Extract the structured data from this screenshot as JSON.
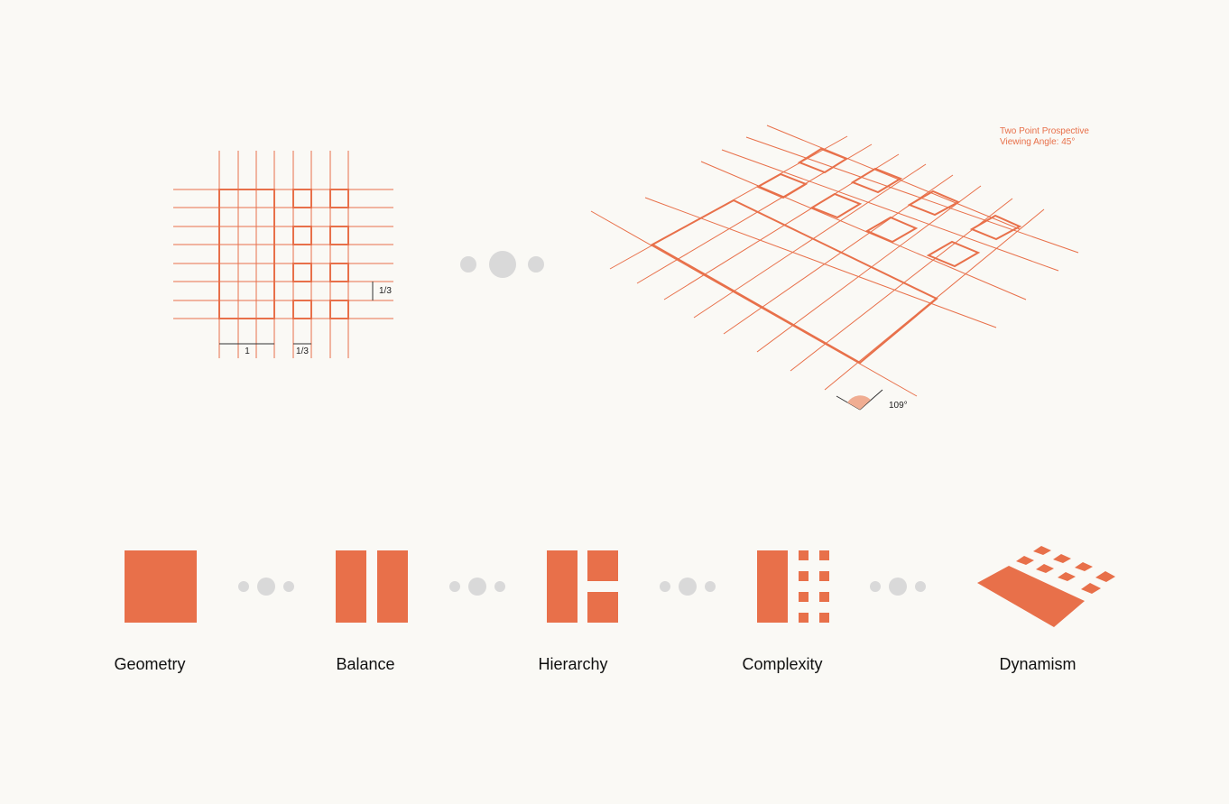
{
  "colors": {
    "accent": "#e8704a",
    "dot": "#d9d9d9",
    "background": "#faf9f5",
    "text": "#111111"
  },
  "grid_diagram": {
    "col_unit_label": "1",
    "col_third_label": "1/3",
    "row_third_label": "1/3"
  },
  "perspective_diagram": {
    "note_line1": "Two Point Prospective",
    "note_line2": "Viewing Angle: 45°",
    "angle_label": "109°"
  },
  "progression": [
    {
      "id": "geometry",
      "label": "Geometry"
    },
    {
      "id": "balance",
      "label": "Balance"
    },
    {
      "id": "hierarchy",
      "label": "Hierarchy"
    },
    {
      "id": "complexity",
      "label": "Complexity"
    },
    {
      "id": "dynamism",
      "label": "Dynamism"
    }
  ]
}
